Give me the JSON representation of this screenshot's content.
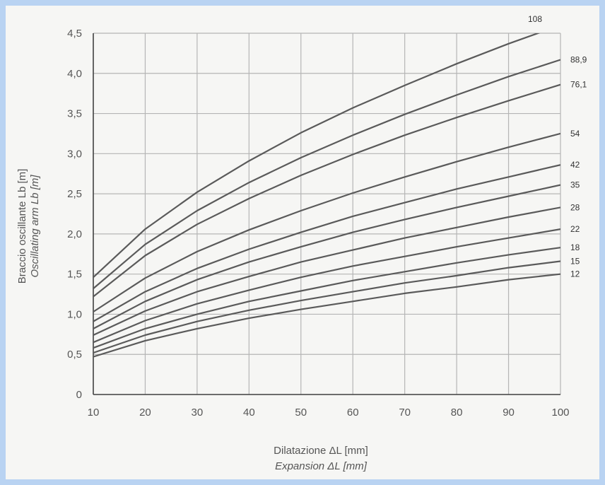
{
  "colors": {
    "page_background": "#b9d3f2",
    "plot_background": "#f6f6f4",
    "grid": "#b5b5b5",
    "curve": "#5a5a5a",
    "axis": "#444444"
  },
  "chart_data": {
    "type": "line",
    "xlabel": "Dilatazione ΔL [mm]",
    "xlabel_en": "Expansion ΔL [mm]",
    "ylabel": "Braccio oscillante Lb [m]",
    "ylabel_en": "Oscillating arm Lb [m]",
    "xlim": [
      10,
      100
    ],
    "ylim": [
      0,
      4.5
    ],
    "grid": true,
    "x": [
      10,
      20,
      30,
      40,
      50,
      60,
      70,
      80,
      90,
      100
    ],
    "xticks": [
      "10",
      "20",
      "30",
      "40",
      "50",
      "60",
      "70",
      "80",
      "90",
      "100"
    ],
    "yticks": [
      {
        "v": 0,
        "label": "0"
      },
      {
        "v": 0.5,
        "label": "0,5"
      },
      {
        "v": 1.0,
        "label": "1,0"
      },
      {
        "v": 1.5,
        "label": "1,5"
      },
      {
        "v": 2.0,
        "label": "2,0"
      },
      {
        "v": 2.5,
        "label": "2,5"
      },
      {
        "v": 3.0,
        "label": "3,0"
      },
      {
        "v": 3.5,
        "label": "3,5"
      },
      {
        "v": 4.0,
        "label": "4,0"
      },
      {
        "v": 4.5,
        "label": "4,5"
      }
    ],
    "series": [
      {
        "name": "12",
        "values": [
          0.47,
          0.67,
          0.82,
          0.95,
          1.06,
          1.16,
          1.26,
          1.34,
          1.43,
          1.5
        ]
      },
      {
        "name": "15",
        "values": [
          0.52,
          0.74,
          0.91,
          1.05,
          1.17,
          1.28,
          1.39,
          1.48,
          1.58,
          1.66
        ]
      },
      {
        "name": "18",
        "values": [
          0.58,
          0.82,
          1.0,
          1.16,
          1.29,
          1.42,
          1.53,
          1.64,
          1.74,
          1.83
        ]
      },
      {
        "name": "22",
        "values": [
          0.65,
          0.92,
          1.13,
          1.3,
          1.46,
          1.6,
          1.72,
          1.84,
          1.95,
          2.06
        ]
      },
      {
        "name": "28",
        "values": [
          0.74,
          1.04,
          1.28,
          1.47,
          1.65,
          1.8,
          1.95,
          2.08,
          2.21,
          2.33
        ]
      },
      {
        "name": "35",
        "values": [
          0.82,
          1.16,
          1.43,
          1.65,
          1.84,
          2.02,
          2.18,
          2.33,
          2.47,
          2.61
        ]
      },
      {
        "name": "42",
        "values": [
          0.91,
          1.28,
          1.57,
          1.81,
          2.02,
          2.22,
          2.39,
          2.56,
          2.71,
          2.86
        ]
      },
      {
        "name": "54",
        "values": [
          1.03,
          1.45,
          1.78,
          2.05,
          2.29,
          2.51,
          2.71,
          2.9,
          3.08,
          3.25
        ]
      },
      {
        "name": "76,1",
        "values": [
          1.22,
          1.73,
          2.12,
          2.44,
          2.73,
          2.99,
          3.23,
          3.45,
          3.66,
          3.86
        ]
      },
      {
        "name": "88,9",
        "values": [
          1.32,
          1.87,
          2.29,
          2.64,
          2.95,
          3.23,
          3.49,
          3.73,
          3.96,
          4.17
        ]
      },
      {
        "name": "108",
        "values": [
          1.46,
          2.06,
          2.52,
          2.91,
          3.26,
          3.57,
          3.85,
          4.12,
          4.37,
          4.6
        ]
      }
    ]
  }
}
